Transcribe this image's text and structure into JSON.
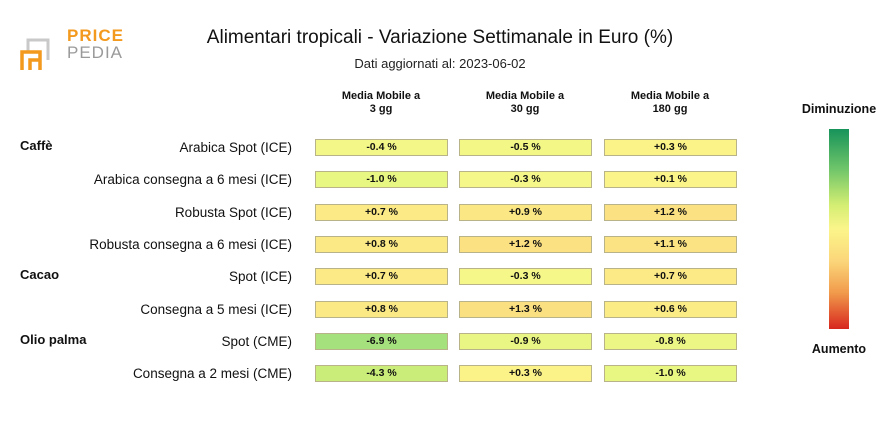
{
  "brand": {
    "line1": "PRICE",
    "line2": "PEDIA"
  },
  "chart_data": {
    "type": "table",
    "title": "Alimentari tropicali - Variazione Settimanale in Euro (%)",
    "subtitle": "Dati aggiornati al: 2023-06-02",
    "columns": [
      "Media Mobile a 3 gg",
      "Media Mobile a 30 gg",
      "Media Mobile a 180 gg"
    ],
    "rows": [
      {
        "group": "Caffè",
        "label": "Arabica Spot (ICE)",
        "values": [
          -0.4,
          -0.5,
          0.3
        ],
        "text": [
          "-0.4 %",
          "-0.5 %",
          "+0.3 %"
        ]
      },
      {
        "group": "",
        "label": "Arabica consegna a 6 mesi (ICE)",
        "values": [
          -1.0,
          -0.3,
          0.1
        ],
        "text": [
          "-1.0 %",
          "-0.3 %",
          "+0.1 %"
        ]
      },
      {
        "group": "",
        "label": "Robusta Spot (ICE)",
        "values": [
          0.7,
          0.9,
          1.2
        ],
        "text": [
          "+0.7 %",
          "+0.9 %",
          "+1.2 %"
        ]
      },
      {
        "group": "",
        "label": "Robusta consegna a 6 mesi (ICE)",
        "values": [
          0.8,
          1.2,
          1.1
        ],
        "text": [
          "+0.8 %",
          "+1.2 %",
          "+1.1 %"
        ]
      },
      {
        "group": "Cacao",
        "label": "Spot (ICE)",
        "values": [
          0.7,
          -0.3,
          0.7
        ],
        "text": [
          "+0.7 %",
          "-0.3 %",
          "+0.7 %"
        ]
      },
      {
        "group": "",
        "label": "Consegna a 5 mesi (ICE)",
        "values": [
          0.8,
          1.3,
          0.6
        ],
        "text": [
          "+0.8 %",
          "+1.3 %",
          "+0.6 %"
        ]
      },
      {
        "group": "Olio palma",
        "label": "Spot (CME)",
        "values": [
          -6.9,
          -0.9,
          -0.8
        ],
        "text": [
          "-6.9 %",
          "-0.9 %",
          "-0.8 %"
        ]
      },
      {
        "group": "",
        "label": "Consegna a 2 mesi (CME)",
        "values": [
          -4.3,
          0.3,
          -1.0
        ],
        "text": [
          "-4.3 %",
          "+0.3 %",
          "-1.0 %"
        ]
      }
    ],
    "legend": {
      "top": "Diminuzione",
      "bottom": "Aumento",
      "colors": [
        "#17935a",
        "#fbf58a",
        "#d7261e"
      ]
    }
  }
}
